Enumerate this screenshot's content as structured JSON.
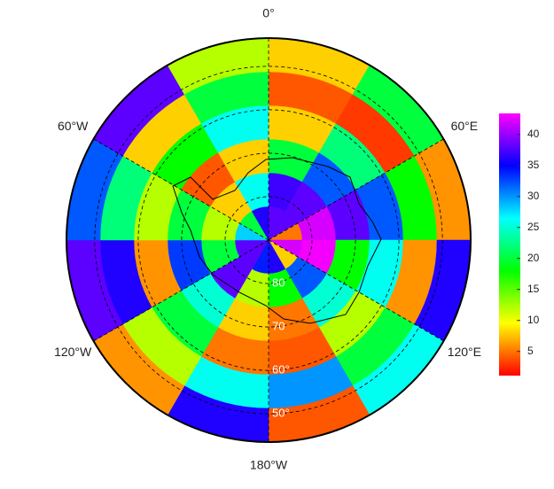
{
  "chart_data": {
    "type": "polar-map",
    "latlim": [
      -90,
      -43.5
    ],
    "lat_ticks": [
      {
        "value": -80,
        "label": "80"
      },
      {
        "value": -70,
        "label": "70"
      },
      {
        "value": -60,
        "label": "60°"
      },
      {
        "value": -50,
        "label": "50°"
      }
    ],
    "lon_ticks": [
      {
        "value": 0,
        "label": "0°"
      },
      {
        "value": 60,
        "label": "60°E"
      },
      {
        "value": 120,
        "label": "120°E"
      },
      {
        "value": 180,
        "label": "180°W"
      },
      {
        "value": -120,
        "label": "120°W"
      },
      {
        "value": -60,
        "label": "60°W"
      }
    ],
    "colormap": "rainbow",
    "clim": [
      1.1,
      43.4
    ],
    "cticks": [
      5,
      10,
      15,
      20,
      25,
      30,
      35,
      40
    ],
    "field": [
      [
        38,
        38,
        5,
        42,
        8,
        36,
        34,
        38,
        38,
        28,
        20,
        36
      ],
      [
        37,
        38,
        42,
        43,
        32,
        18,
        12,
        38,
        20,
        12,
        8,
        26
      ],
      [
        20,
        32,
        38,
        18,
        25,
        5,
        8,
        25,
        33,
        20,
        4,
        8
      ],
      [
        8,
        22,
        32,
        26,
        12,
        4,
        5,
        20,
        6,
        12,
        18,
        26
      ],
      [
        4,
        3,
        18,
        6,
        20,
        30,
        26,
        12,
        36,
        22,
        8,
        20
      ],
      [
        8,
        20,
        6,
        36,
        26,
        4,
        36,
        6,
        38,
        32,
        38,
        12
      ]
    ]
  }
}
